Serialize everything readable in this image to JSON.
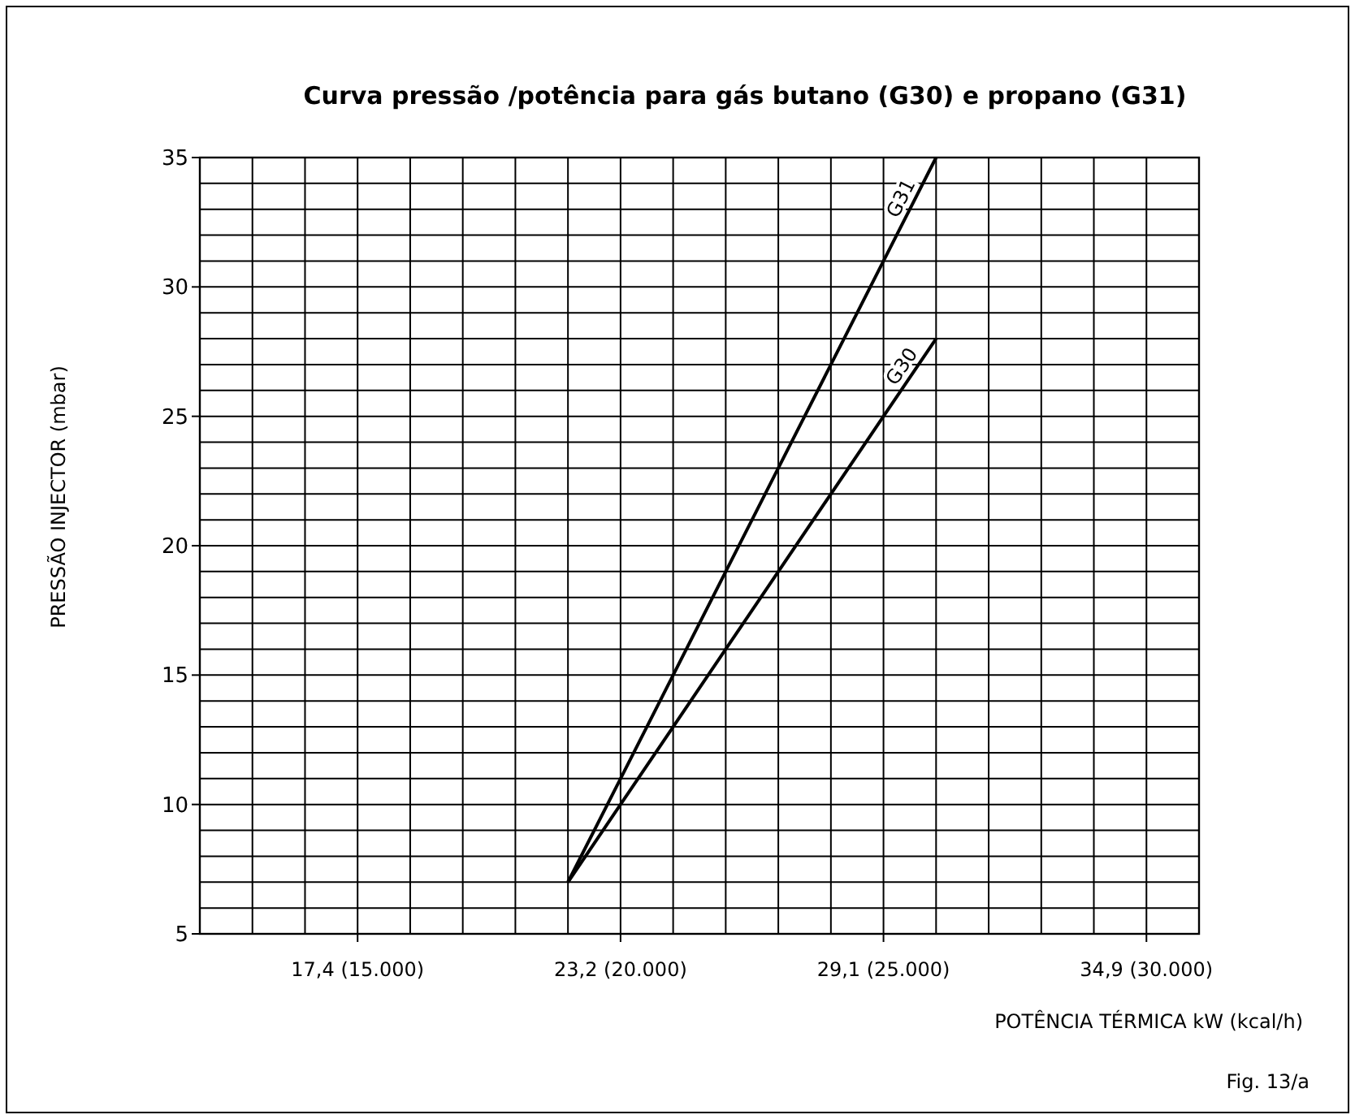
{
  "chart_data": {
    "type": "line",
    "title": "Curva pressão /potência para gás butano (G30) e propano (G31)",
    "xlabel": "POTÊNCIA TÉRMICA kW (kcal/h)",
    "ylabel": "PRESSÃO INJECTOR (mbar)",
    "annotations": [
      "Fig. 13/a"
    ],
    "categories": [
      null,
      null,
      null,
      "17,4 (15.000)",
      null,
      null,
      null,
      null,
      "23,2 (20.000)",
      null,
      null,
      null,
      null,
      "29,1 (25.000)",
      null,
      null,
      null,
      null,
      "34,9 (30.000)",
      null
    ],
    "ylim": [
      5,
      35
    ],
    "yticks": [
      5,
      {
        "value": 6,
        "label": null
      },
      {
        "value": 7,
        "label": null
      },
      {
        "value": 8,
        "label": null
      },
      {
        "value": 9,
        "label": null
      },
      10,
      {
        "value": 11,
        "label": null
      },
      {
        "value": 12,
        "label": null
      },
      {
        "value": 13,
        "label": null
      },
      {
        "value": 14,
        "label": null
      },
      15,
      {
        "value": 16,
        "label": null
      },
      {
        "value": 17,
        "label": null
      },
      {
        "value": 18,
        "label": null
      },
      {
        "value": 19,
        "label": null
      },
      20,
      {
        "value": 21,
        "label": null
      },
      {
        "value": 22,
        "label": null
      },
      {
        "value": 23,
        "label": null
      },
      {
        "value": 24,
        "label": null
      },
      25,
      {
        "value": 26,
        "label": null
      },
      {
        "value": 27,
        "label": null
      },
      {
        "value": 28,
        "label": null
      },
      {
        "value": 29,
        "label": null
      },
      30,
      {
        "value": 31,
        "label": null
      },
      {
        "value": 32,
        "label": null
      },
      {
        "value": 33,
        "label": null
      },
      {
        "value": 34,
        "label": null
      },
      35
    ],
    "grid": true,
    "line_style": "solid",
    "marker": "none",
    "series": [
      {
        "name": "G31",
        "color": "#000000",
        "values": [
          null,
          null,
          null,
          null,
          null,
          null,
          null,
          7,
          11,
          15,
          19,
          23,
          27,
          31,
          35,
          null,
          null,
          null,
          null,
          null
        ]
      },
      {
        "name": "G30",
        "color": "#000000",
        "values": [
          null,
          null,
          null,
          null,
          null,
          null,
          null,
          7,
          10,
          13,
          16,
          19,
          22,
          25,
          28,
          null,
          null,
          null,
          null,
          null
        ]
      }
    ]
  }
}
